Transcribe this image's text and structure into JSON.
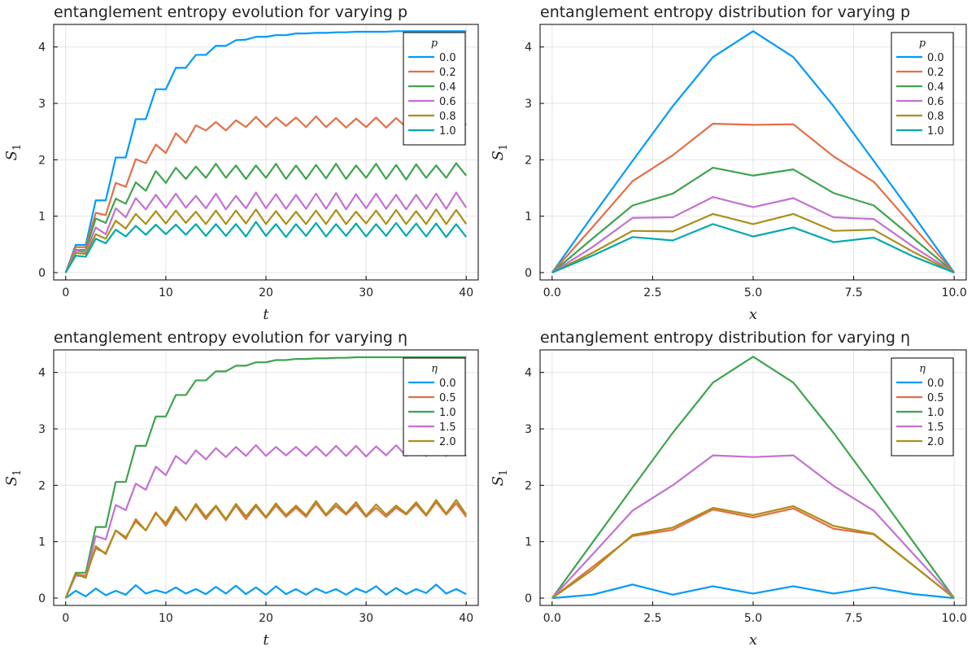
{
  "colors": [
    "#009AFA",
    "#E36F47",
    "#3EA44E",
    "#C371D2",
    "#AC8E18",
    "#00A9AD"
  ],
  "chart_data": [
    {
      "type": "line",
      "title": "entanglement entropy evolution for varying p",
      "xlabel": "t",
      "ylabel": "S_1",
      "xlim": [
        -1.2,
        41.2
      ],
      "ylim": [
        -0.13,
        4.4
      ],
      "xticks": [
        0,
        10,
        20,
        30,
        40
      ],
      "xtick_labels": [
        "0",
        "10",
        "20",
        "30",
        "40"
      ],
      "yticks": [
        0,
        1,
        2,
        3,
        4
      ],
      "ytick_labels": [
        "0",
        "1",
        "2",
        "3",
        "4"
      ],
      "grid": true,
      "legend_position": "top-right",
      "legend_title": "p",
      "x": [
        0,
        1,
        2,
        3,
        4,
        5,
        6,
        7,
        8,
        9,
        10,
        11,
        12,
        13,
        14,
        15,
        16,
        17,
        18,
        19,
        20,
        21,
        22,
        23,
        24,
        25,
        26,
        27,
        28,
        29,
        30,
        31,
        32,
        33,
        34,
        35,
        36,
        37,
        38,
        39,
        40
      ],
      "series": [
        {
          "name": "0.0",
          "values": [
            0,
            0.49,
            0.49,
            1.28,
            1.28,
            2.04,
            2.04,
            2.72,
            2.72,
            3.25,
            3.25,
            3.63,
            3.63,
            3.86,
            3.86,
            4.02,
            4.02,
            4.12,
            4.13,
            4.18,
            4.18,
            4.21,
            4.21,
            4.24,
            4.24,
            4.25,
            4.25,
            4.26,
            4.26,
            4.27,
            4.27,
            4.27,
            4.27,
            4.28,
            4.28,
            4.28,
            4.28,
            4.28,
            4.28,
            4.28,
            4.28
          ]
        },
        {
          "name": "0.2",
          "values": [
            0,
            0.45,
            0.45,
            1.06,
            1.02,
            1.59,
            1.52,
            2.01,
            1.94,
            2.27,
            2.12,
            2.47,
            2.3,
            2.61,
            2.52,
            2.67,
            2.52,
            2.7,
            2.58,
            2.76,
            2.58,
            2.75,
            2.6,
            2.75,
            2.58,
            2.77,
            2.58,
            2.74,
            2.57,
            2.73,
            2.58,
            2.75,
            2.57,
            2.74,
            2.58,
            2.77,
            2.57,
            2.73,
            2.6,
            2.76,
            2.62
          ]
        },
        {
          "name": "0.4",
          "values": [
            0,
            0.4,
            0.4,
            0.96,
            0.88,
            1.31,
            1.22,
            1.6,
            1.45,
            1.8,
            1.59,
            1.86,
            1.66,
            1.88,
            1.68,
            1.93,
            1.68,
            1.9,
            1.66,
            1.9,
            1.68,
            1.93,
            1.66,
            1.9,
            1.66,
            1.91,
            1.67,
            1.93,
            1.66,
            1.9,
            1.68,
            1.93,
            1.66,
            1.91,
            1.65,
            1.92,
            1.68,
            1.9,
            1.68,
            1.94,
            1.72
          ]
        },
        {
          "name": "0.6",
          "values": [
            0,
            0.39,
            0.36,
            0.8,
            0.68,
            1.14,
            0.98,
            1.32,
            1.12,
            1.38,
            1.15,
            1.4,
            1.15,
            1.36,
            1.14,
            1.4,
            1.12,
            1.36,
            1.14,
            1.42,
            1.14,
            1.39,
            1.13,
            1.38,
            1.13,
            1.4,
            1.13,
            1.41,
            1.12,
            1.39,
            1.14,
            1.4,
            1.13,
            1.38,
            1.12,
            1.38,
            1.13,
            1.4,
            1.13,
            1.42,
            1.15
          ]
        },
        {
          "name": "0.8",
          "values": [
            0,
            0.35,
            0.33,
            0.68,
            0.6,
            0.92,
            0.78,
            1.04,
            0.86,
            1.09,
            0.87,
            1.1,
            0.88,
            1.08,
            0.86,
            1.1,
            0.86,
            1.1,
            0.87,
            1.12,
            0.86,
            1.09,
            0.86,
            1.08,
            0.86,
            1.1,
            0.86,
            1.11,
            0.86,
            1.08,
            0.87,
            1.1,
            0.86,
            1.11,
            0.86,
            1.09,
            0.86,
            1.12,
            0.86,
            1.11,
            0.86
          ]
        },
        {
          "name": "1.0",
          "values": [
            0,
            0.3,
            0.28,
            0.6,
            0.52,
            0.76,
            0.64,
            0.83,
            0.67,
            0.85,
            0.68,
            0.85,
            0.67,
            0.86,
            0.65,
            0.86,
            0.65,
            0.86,
            0.64,
            0.9,
            0.65,
            0.86,
            0.63,
            0.86,
            0.65,
            0.88,
            0.64,
            0.86,
            0.65,
            0.87,
            0.64,
            0.86,
            0.65,
            0.88,
            0.65,
            0.87,
            0.64,
            0.87,
            0.63,
            0.86,
            0.63
          ]
        }
      ]
    },
    {
      "type": "line",
      "title": "entanglement entropy distribution for varying p",
      "xlabel": "x",
      "ylabel": "S_1",
      "xlim": [
        -0.3,
        10.3
      ],
      "ylim": [
        -0.13,
        4.4
      ],
      "xticks": [
        0,
        2.5,
        5,
        7.5,
        10
      ],
      "xtick_labels": [
        "0.0",
        "2.5",
        "5.0",
        "7.5",
        "10.0"
      ],
      "yticks": [
        0,
        1,
        2,
        3,
        4
      ],
      "ytick_labels": [
        "0",
        "1",
        "2",
        "3",
        "4"
      ],
      "grid": true,
      "legend_position": "top-right",
      "legend_title": "p",
      "x": [
        0,
        1,
        2,
        3,
        4,
        5,
        6,
        7,
        8,
        9,
        10
      ],
      "series": [
        {
          "name": "0.0",
          "values": [
            0,
            1.0,
            1.98,
            2.95,
            3.82,
            4.28,
            3.82,
            2.95,
            1.98,
            1.0,
            0
          ]
        },
        {
          "name": "0.2",
          "values": [
            0,
            0.8,
            1.62,
            2.08,
            2.64,
            2.62,
            2.63,
            2.06,
            1.61,
            0.8,
            0
          ]
        },
        {
          "name": "0.4",
          "values": [
            0,
            0.6,
            1.19,
            1.4,
            1.86,
            1.72,
            1.83,
            1.41,
            1.19,
            0.6,
            0
          ]
        },
        {
          "name": "0.6",
          "values": [
            0,
            0.45,
            0.97,
            0.98,
            1.34,
            1.16,
            1.32,
            0.98,
            0.95,
            0.45,
            0
          ]
        },
        {
          "name": "0.8",
          "values": [
            0,
            0.35,
            0.74,
            0.73,
            1.04,
            0.86,
            1.04,
            0.74,
            0.76,
            0.36,
            0
          ]
        },
        {
          "name": "1.0",
          "values": [
            0,
            0.3,
            0.63,
            0.57,
            0.86,
            0.64,
            0.8,
            0.54,
            0.62,
            0.28,
            0
          ]
        }
      ]
    },
    {
      "type": "line",
      "title": "entanglement entropy evolution for varying η",
      "xlabel": "t",
      "ylabel": "S_1",
      "xlim": [
        -1.2,
        41.2
      ],
      "ylim": [
        -0.13,
        4.4
      ],
      "xticks": [
        0,
        10,
        20,
        30,
        40
      ],
      "xtick_labels": [
        "0",
        "10",
        "20",
        "30",
        "40"
      ],
      "yticks": [
        0,
        1,
        2,
        3,
        4
      ],
      "ytick_labels": [
        "0",
        "1",
        "2",
        "3",
        "4"
      ],
      "grid": true,
      "legend_position": "top-right",
      "legend_title": "η",
      "x": [
        0,
        1,
        2,
        3,
        4,
        5,
        6,
        7,
        8,
        9,
        10,
        11,
        12,
        13,
        14,
        15,
        16,
        17,
        18,
        19,
        20,
        21,
        22,
        23,
        24,
        25,
        26,
        27,
        28,
        29,
        30,
        31,
        32,
        33,
        34,
        35,
        36,
        37,
        38,
        39,
        40
      ],
      "series": [
        {
          "name": "0.0",
          "values": [
            0,
            0.13,
            0.03,
            0.17,
            0.05,
            0.13,
            0.06,
            0.23,
            0.08,
            0.14,
            0.09,
            0.19,
            0.08,
            0.16,
            0.07,
            0.2,
            0.08,
            0.22,
            0.07,
            0.19,
            0.06,
            0.21,
            0.07,
            0.16,
            0.06,
            0.17,
            0.09,
            0.16,
            0.06,
            0.17,
            0.1,
            0.21,
            0.06,
            0.18,
            0.07,
            0.16,
            0.09,
            0.24,
            0.08,
            0.16,
            0.07
          ]
        },
        {
          "name": "0.5",
          "values": [
            0,
            0.42,
            0.4,
            0.88,
            0.8,
            1.2,
            1.05,
            1.4,
            1.2,
            1.52,
            1.28,
            1.58,
            1.38,
            1.64,
            1.4,
            1.62,
            1.38,
            1.64,
            1.4,
            1.63,
            1.42,
            1.64,
            1.44,
            1.6,
            1.44,
            1.68,
            1.46,
            1.63,
            1.48,
            1.65,
            1.44,
            1.6,
            1.44,
            1.6,
            1.48,
            1.66,
            1.46,
            1.7,
            1.48,
            1.68,
            1.44
          ]
        },
        {
          "name": "1.0",
          "values": [
            0,
            0.45,
            0.45,
            1.26,
            1.26,
            2.06,
            2.06,
            2.7,
            2.7,
            3.22,
            3.22,
            3.6,
            3.6,
            3.86,
            3.86,
            4.02,
            4.02,
            4.12,
            4.12,
            4.18,
            4.18,
            4.22,
            4.22,
            4.24,
            4.24,
            4.25,
            4.25,
            4.26,
            4.26,
            4.27,
            4.27,
            4.27,
            4.27,
            4.27,
            4.27,
            4.27,
            4.27,
            4.27,
            4.27,
            4.27,
            4.27
          ]
        },
        {
          "name": "1.5",
          "values": [
            0,
            0.4,
            0.38,
            1.1,
            1.04,
            1.65,
            1.56,
            2.03,
            1.92,
            2.33,
            2.18,
            2.52,
            2.38,
            2.62,
            2.46,
            2.66,
            2.5,
            2.68,
            2.52,
            2.71,
            2.52,
            2.68,
            2.53,
            2.68,
            2.52,
            2.69,
            2.52,
            2.7,
            2.52,
            2.7,
            2.51,
            2.69,
            2.53,
            2.71,
            2.52,
            2.68,
            2.52,
            2.67,
            2.52,
            2.68,
            2.52
          ]
        },
        {
          "name": "2.0",
          "values": [
            0,
            0.43,
            0.36,
            0.92,
            0.78,
            1.2,
            1.08,
            1.36,
            1.2,
            1.5,
            1.33,
            1.62,
            1.38,
            1.67,
            1.44,
            1.64,
            1.4,
            1.67,
            1.45,
            1.66,
            1.44,
            1.68,
            1.47,
            1.64,
            1.47,
            1.72,
            1.48,
            1.68,
            1.5,
            1.7,
            1.46,
            1.66,
            1.48,
            1.64,
            1.5,
            1.7,
            1.48,
            1.74,
            1.5,
            1.74,
            1.48
          ]
        }
      ]
    },
    {
      "type": "line",
      "title": "entanglement entropy distribution for varying η",
      "xlabel": "x",
      "ylabel": "S_1",
      "xlim": [
        -0.3,
        10.3
      ],
      "ylim": [
        -0.13,
        4.4
      ],
      "xticks": [
        0,
        2.5,
        5,
        7.5,
        10
      ],
      "xtick_labels": [
        "0.0",
        "2.5",
        "5.0",
        "7.5",
        "10.0"
      ],
      "yticks": [
        0,
        1,
        2,
        3,
        4
      ],
      "ytick_labels": [
        "0",
        "1",
        "2",
        "3",
        "4"
      ],
      "grid": true,
      "legend_position": "top-right",
      "legend_title": "η",
      "x": [
        0,
        1,
        2,
        3,
        4,
        5,
        6,
        7,
        8,
        9,
        10
      ],
      "series": [
        {
          "name": "0.0",
          "values": [
            0,
            0.06,
            0.24,
            0.06,
            0.21,
            0.08,
            0.21,
            0.08,
            0.19,
            0.07,
            0
          ]
        },
        {
          "name": "0.5",
          "values": [
            0,
            0.55,
            1.1,
            1.21,
            1.57,
            1.43,
            1.59,
            1.23,
            1.13,
            0.57,
            0
          ]
        },
        {
          "name": "1.0",
          "values": [
            0,
            0.98,
            1.96,
            2.93,
            3.82,
            4.28,
            3.82,
            2.93,
            1.96,
            0.98,
            0
          ]
        },
        {
          "name": "1.5",
          "values": [
            0,
            0.77,
            1.55,
            2.0,
            2.53,
            2.5,
            2.53,
            1.99,
            1.55,
            0.77,
            0
          ]
        },
        {
          "name": "2.0",
          "values": [
            0,
            0.5,
            1.12,
            1.25,
            1.6,
            1.47,
            1.63,
            1.28,
            1.14,
            0.57,
            0
          ]
        }
      ]
    }
  ]
}
